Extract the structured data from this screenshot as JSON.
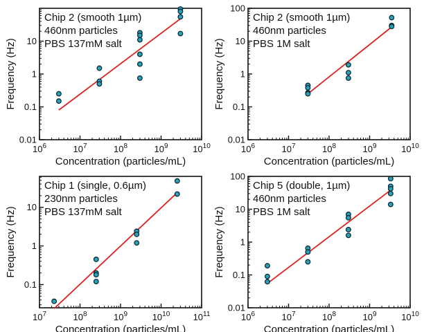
{
  "chart_data": [
    {
      "type": "scatter",
      "annotation": [
        "Chip 2 (smooth 1µm)",
        "460nm particles",
        "PBS 137mM salt"
      ],
      "xlabel": "Concentration (particles/mL)",
      "ylabel": "Frequency (Hz)",
      "xscale": "log",
      "yscale": "log",
      "xlim_exp": [
        6,
        10
      ],
      "ylim_exp": [
        -2,
        2
      ],
      "xticks": [
        {
          "base": "10",
          "exp": "6"
        },
        {
          "base": "10",
          "exp": "7"
        },
        {
          "base": "10",
          "exp": "8"
        },
        {
          "base": "10",
          "exp": "9"
        },
        {
          "base": "10",
          "exp": "10"
        }
      ],
      "yticks": [
        "0.01",
        "0.1",
        "1",
        "10"
      ],
      "ytick_values": [
        0.01,
        0.1,
        1,
        10
      ],
      "points": [
        [
          3000000.0,
          0.25
        ],
        [
          3000000.0,
          0.15
        ],
        [
          30000000.0,
          1.5
        ],
        [
          30000000.0,
          0.6
        ],
        [
          30000000.0,
          0.5
        ],
        [
          300000000.0,
          18
        ],
        [
          300000000.0,
          15
        ],
        [
          300000000.0,
          11
        ],
        [
          300000000.0,
          4
        ],
        [
          300000000.0,
          2
        ],
        [
          300000000.0,
          0.75
        ],
        [
          3000000000.0,
          95
        ],
        [
          3000000000.0,
          80
        ],
        [
          3000000000.0,
          55
        ],
        [
          3000000000.0,
          17
        ]
      ],
      "fit_line": [
        [
          3000000.0,
          0.08
        ],
        [
          3000000000.0,
          48
        ]
      ],
      "colors": {
        "marker_fill": "#2aa3b5",
        "marker_edge": "#0a2a3a",
        "fit": "#e02020"
      }
    },
    {
      "type": "scatter",
      "annotation": [
        "Chip 2 (smooth 1µm)",
        "460nm particles",
        "PBS 1M salt"
      ],
      "xlabel": "Concentration (particles/mL)",
      "ylabel": "Frequency (Hz)",
      "xscale": "log",
      "yscale": "log",
      "xlim_exp": [
        6,
        10
      ],
      "ylim_exp": [
        -2,
        2
      ],
      "xticks": [
        {
          "base": "10",
          "exp": "6"
        },
        {
          "base": "10",
          "exp": "7"
        },
        {
          "base": "10",
          "exp": "8"
        },
        {
          "base": "10",
          "exp": "9"
        },
        {
          "base": "10",
          "exp": "10"
        }
      ],
      "yticks": [
        "0.01",
        "0.1",
        "1",
        "10",
        "100"
      ],
      "ytick_values": [
        0.01,
        0.1,
        1,
        10,
        100
      ],
      "points": [
        [
          30000000.0,
          0.45
        ],
        [
          30000000.0,
          0.38
        ],
        [
          30000000.0,
          0.27
        ],
        [
          30000000.0,
          0.25
        ],
        [
          300000000.0,
          1.9
        ],
        [
          300000000.0,
          1.1
        ],
        [
          300000000.0,
          0.75
        ],
        [
          3500000000.0,
          52
        ],
        [
          3500000000.0,
          30
        ],
        [
          3500000000.0,
          28
        ]
      ],
      "fit_line": [
        [
          30000000.0,
          0.25
        ],
        [
          3500000000.0,
          27
        ]
      ],
      "colors": {
        "marker_fill": "#2aa3b5",
        "marker_edge": "#0a2a3a",
        "fit": "#e02020"
      }
    },
    {
      "type": "scatter",
      "annotation": [
        "Chip 1 (single, 0.6µm)",
        "230nm particles",
        "PBS 137mM salt"
      ],
      "xlabel": "Concentration (particles/mL)",
      "ylabel": "Frequency (Hz)",
      "xscale": "log",
      "yscale": "log",
      "xlim_exp": [
        7,
        11
      ],
      "ylim_exp": [
        -1.6,
        1.8
      ],
      "xticks": [
        {
          "base": "10",
          "exp": "7"
        },
        {
          "base": "10",
          "exp": "8"
        },
        {
          "base": "10",
          "exp": "9"
        },
        {
          "base": "10",
          "exp": "10"
        },
        {
          "base": "10",
          "exp": "11"
        }
      ],
      "yticks": [
        "0.1",
        "1",
        "10"
      ],
      "ytick_values": [
        0.1,
        1,
        10
      ],
      "points": [
        [
          23000000.0,
          0.037
        ],
        [
          250000000.0,
          0.45
        ],
        [
          250000000.0,
          0.2
        ],
        [
          250000000.0,
          0.18
        ],
        [
          250000000.0,
          0.12
        ],
        [
          2500000000.0,
          2.4
        ],
        [
          2500000000.0,
          2.0
        ],
        [
          2500000000.0,
          1.2
        ],
        [
          25000000000.0,
          48
        ],
        [
          25000000000.0,
          22
        ]
      ],
      "fit_line": [
        [
          23000000.0,
          0.024
        ],
        [
          23000000000.0,
          22
        ]
      ],
      "colors": {
        "marker_fill": "#2aa3b5",
        "marker_edge": "#0a2a3a",
        "fit": "#e02020"
      }
    },
    {
      "type": "scatter",
      "annotation": [
        "Chip 5 (double, 1µm)",
        "460nm particles",
        "PBS 1M salt"
      ],
      "xlabel": "Concentration (particles/mL)",
      "ylabel": "Frequency (Hz)",
      "xscale": "log",
      "yscale": "log",
      "xlim_exp": [
        6,
        10
      ],
      "ylim_exp": [
        -2,
        2
      ],
      "xticks": [
        {
          "base": "10",
          "exp": "6"
        },
        {
          "base": "10",
          "exp": "7"
        },
        {
          "base": "10",
          "exp": "8"
        },
        {
          "base": "10",
          "exp": "9"
        },
        {
          "base": "10",
          "exp": "10"
        }
      ],
      "yticks": [
        "0.01",
        "0.1",
        "1",
        "10",
        "100"
      ],
      "ytick_values": [
        0.01,
        0.1,
        1,
        10,
        100
      ],
      "points": [
        [
          3000000.0,
          0.19
        ],
        [
          3000000.0,
          0.09
        ],
        [
          3000000.0,
          0.062
        ],
        [
          30000000.0,
          0.65
        ],
        [
          30000000.0,
          0.5
        ],
        [
          30000000.0,
          0.25
        ],
        [
          300000000.0,
          7.0
        ],
        [
          300000000.0,
          5.5
        ],
        [
          300000000.0,
          2.4
        ],
        [
          300000000.0,
          1.6
        ],
        [
          3300000000.0,
          85
        ],
        [
          3300000000.0,
          50
        ],
        [
          3300000000.0,
          42
        ],
        [
          3300000000.0,
          30
        ],
        [
          3300000000.0,
          14
        ]
      ],
      "fit_line": [
        [
          3000000.0,
          0.055
        ],
        [
          3300000000.0,
          38
        ]
      ],
      "colors": {
        "marker_fill": "#2aa3b5",
        "marker_edge": "#0a2a3a",
        "fit": "#e02020"
      }
    }
  ]
}
